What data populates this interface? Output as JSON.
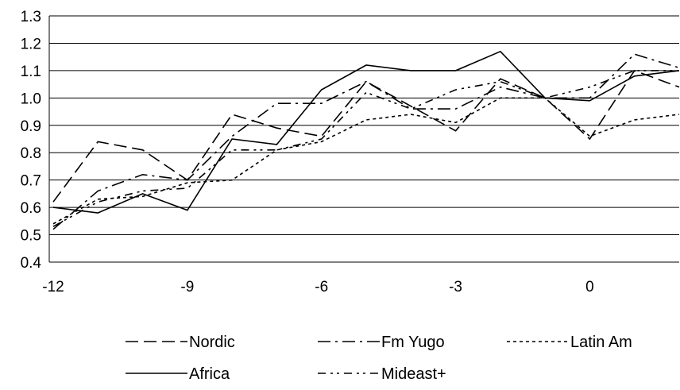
{
  "chart_data": {
    "type": "line",
    "title": "",
    "xlabel": "",
    "ylabel": "",
    "xlim": [
      -12,
      2
    ],
    "ylim": [
      0.4,
      1.3
    ],
    "x_ticks": [
      -12,
      -9,
      -6,
      -3,
      0
    ],
    "y_ticks": [
      "0.4",
      "0.5",
      "0.6",
      "0.7",
      "0.8",
      "0.9",
      "1.0",
      "1.1",
      "1.2",
      "1.3"
    ],
    "grid": "horizontal",
    "legend_position": "bottom",
    "x": [
      -12,
      -11,
      -10,
      -9,
      -8,
      -7,
      -6,
      -5,
      -4,
      -3,
      -2,
      -1,
      0,
      1,
      2
    ],
    "series": [
      {
        "name": "Nordic",
        "values": [
          0.62,
          0.84,
          0.81,
          0.7,
          0.94,
          0.89,
          0.86,
          1.06,
          0.97,
          0.88,
          1.07,
          1.0,
          0.85,
          1.1,
          1.04
        ]
      },
      {
        "name": "Fm Yugo",
        "values": [
          0.52,
          0.66,
          0.72,
          0.7,
          0.86,
          0.98,
          0.98,
          1.06,
          0.96,
          0.96,
          1.04,
          1.0,
          1.0,
          1.16,
          1.11
        ]
      },
      {
        "name": "Latin Am",
        "values": [
          0.54,
          0.63,
          0.64,
          0.69,
          0.7,
          0.81,
          0.84,
          0.92,
          0.94,
          0.91,
          1.0,
          1.0,
          0.86,
          0.92,
          0.94
        ]
      },
      {
        "name": "Africa",
        "values": [
          0.6,
          0.58,
          0.65,
          0.59,
          0.85,
          0.83,
          1.03,
          1.12,
          1.1,
          1.1,
          1.17,
          1.0,
          0.99,
          1.08,
          1.1
        ]
      },
      {
        "name": "Mideast+",
        "values": [
          0.53,
          0.62,
          0.66,
          0.67,
          0.81,
          0.81,
          0.85,
          1.02,
          0.96,
          1.03,
          1.06,
          1.0,
          1.04,
          1.1,
          1.1
        ]
      }
    ]
  }
}
